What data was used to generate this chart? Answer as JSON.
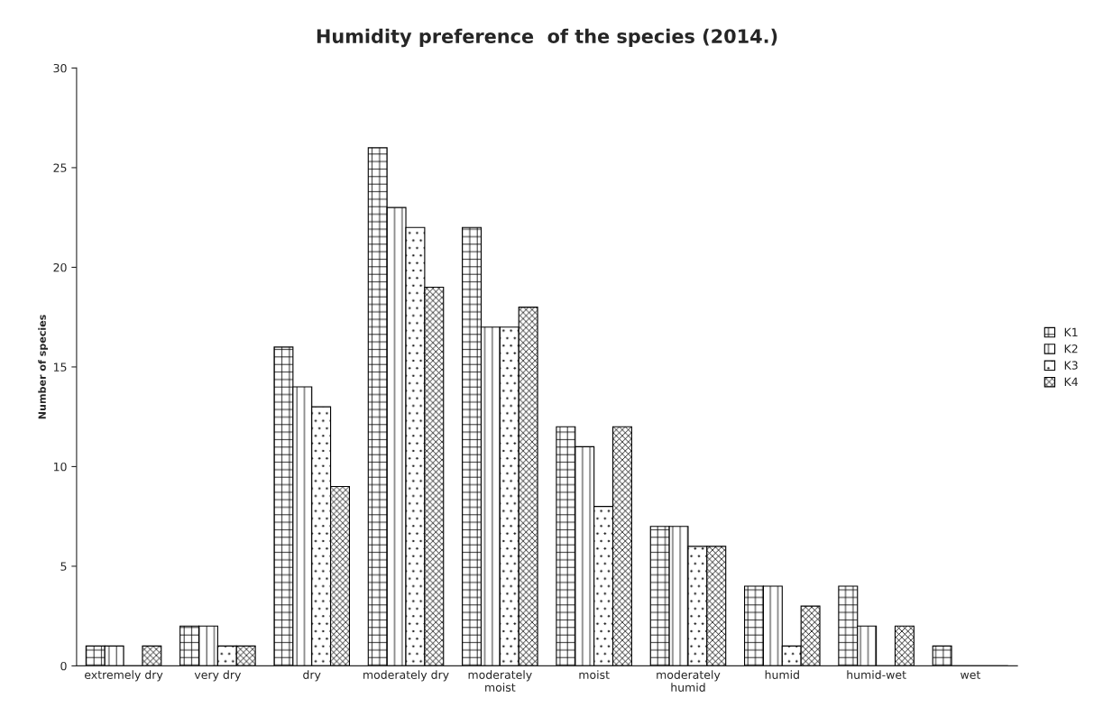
{
  "chart_data": {
    "type": "bar",
    "title": "Humidity preference  of the species (2014.)",
    "ylabel": "Number of species",
    "categories": [
      "extremely dry",
      "very dry",
      "dry",
      "moderately dry",
      "moderately moist",
      "moist",
      "moderately humid",
      "humid",
      "humid-wet",
      "wet"
    ],
    "series": [
      {
        "name": "K1",
        "color": "#000000",
        "values": [
          1,
          2,
          16,
          26,
          22,
          12,
          7,
          4,
          4,
          1
        ]
      },
      {
        "name": "K2",
        "color": "#000000",
        "values": [
          1,
          2,
          14,
          23,
          17,
          11,
          7,
          4,
          2,
          0
        ]
      },
      {
        "name": "K3",
        "color": "#000000",
        "values": [
          0,
          1,
          13,
          22,
          17,
          8,
          6,
          1,
          0,
          0
        ]
      },
      {
        "name": "K4",
        "color": "#000000",
        "values": [
          1,
          1,
          9,
          19,
          18,
          12,
          6,
          3,
          2,
          0
        ]
      }
    ],
    "ylim": [
      0,
      30
    ],
    "yticks": [
      0,
      5,
      10,
      15,
      20,
      25,
      30
    ],
    "grid": false,
    "legend": "right"
  }
}
